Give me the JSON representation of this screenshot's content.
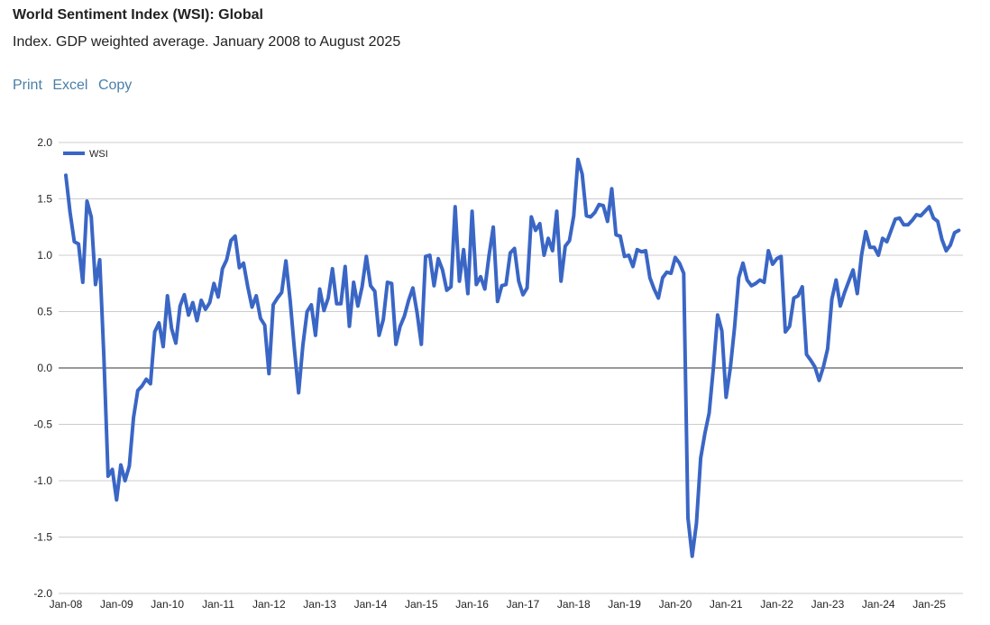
{
  "header": {
    "title": "World Sentiment Index (WSI): Global",
    "subtitle": "Index. GDP weighted average. January 2008 to August 2025"
  },
  "actions": {
    "print_label": "Print",
    "excel_label": "Excel",
    "copy_label": "Copy"
  },
  "chart_data": {
    "type": "line",
    "title": "World Sentiment Index (WSI): Global",
    "subtitle": "Index. GDP weighted average. January 2008 to August 2025",
    "xlabel": "",
    "ylabel": "",
    "ylim": [
      -2.0,
      2.0
    ],
    "yticks": [
      "2.0",
      "1.5",
      "1.0",
      "0.5",
      "0.0",
      "-0.5",
      "-1.0",
      "-1.5",
      "-2.0"
    ],
    "ytick_values": [
      2.0,
      1.5,
      1.0,
      0.5,
      0.0,
      -0.5,
      -1.0,
      -1.5,
      -2.0
    ],
    "xticks": [
      "Jan-08",
      "Jan-09",
      "Jan-10",
      "Jan-11",
      "Jan-12",
      "Jan-13",
      "Jan-14",
      "Jan-15",
      "Jan-16",
      "Jan-17",
      "Jan-18",
      "Jan-19",
      "Jan-20",
      "Jan-21",
      "Jan-22",
      "Jan-23",
      "Jan-24",
      "Jan-25"
    ],
    "start": "2008-01",
    "end": "2025-08",
    "grid": true,
    "legend": "top-left",
    "series_color": "#3a66c5",
    "series": [
      {
        "name": "WSI",
        "values": [
          1.71,
          1.38,
          1.12,
          1.1,
          0.76,
          1.48,
          1.34,
          0.74,
          0.96,
          0.1,
          -0.96,
          -0.9,
          -1.17,
          -0.86,
          -1.0,
          -0.87,
          -0.44,
          -0.2,
          -0.16,
          -0.1,
          -0.14,
          0.32,
          0.4,
          0.19,
          0.64,
          0.35,
          0.22,
          0.55,
          0.65,
          0.47,
          0.58,
          0.42,
          0.6,
          0.52,
          0.58,
          0.75,
          0.63,
          0.88,
          0.96,
          1.13,
          1.17,
          0.89,
          0.93,
          0.72,
          0.54,
          0.64,
          0.44,
          0.38,
          -0.05,
          0.56,
          0.62,
          0.67,
          0.95,
          0.6,
          0.17,
          -0.22,
          0.2,
          0.5,
          0.56,
          0.29,
          0.7,
          0.51,
          0.62,
          0.88,
          0.57,
          0.57,
          0.9,
          0.37,
          0.76,
          0.55,
          0.72,
          0.99,
          0.73,
          0.68,
          0.29,
          0.43,
          0.76,
          0.75,
          0.21,
          0.37,
          0.46,
          0.6,
          0.71,
          0.49,
          0.21,
          0.99,
          1.0,
          0.73,
          0.97,
          0.87,
          0.69,
          0.72,
          1.43,
          0.77,
          1.05,
          0.66,
          1.39,
          0.74,
          0.81,
          0.7,
          1.0,
          1.25,
          0.59,
          0.73,
          0.74,
          1.02,
          1.06,
          0.77,
          0.65,
          0.71,
          1.34,
          1.22,
          1.28,
          1.0,
          1.15,
          1.04,
          1.39,
          0.77,
          1.08,
          1.13,
          1.35,
          1.85,
          1.72,
          1.35,
          1.34,
          1.38,
          1.45,
          1.44,
          1.3,
          1.59,
          1.18,
          1.17,
          0.99,
          1.0,
          0.9,
          1.05,
          1.03,
          1.04,
          0.8,
          0.7,
          0.62,
          0.8,
          0.85,
          0.84,
          0.98,
          0.93,
          0.84,
          -1.33,
          -1.67,
          -1.38,
          -0.8,
          -0.58,
          -0.4,
          0.0,
          0.47,
          0.33,
          -0.26,
          0.0,
          0.36,
          0.8,
          0.93,
          0.78,
          0.73,
          0.75,
          0.78,
          0.76,
          1.04,
          0.92,
          0.97,
          0.99,
          0.32,
          0.37,
          0.62,
          0.64,
          0.72,
          0.12,
          0.07,
          0.01,
          -0.11,
          0.01,
          0.17,
          0.61,
          0.78,
          0.55,
          0.67,
          0.77,
          0.87,
          0.66,
          1.0,
          1.21,
          1.07,
          1.07,
          1.0,
          1.15,
          1.12,
          1.22,
          1.32,
          1.33,
          1.27,
          1.27,
          1.31,
          1.36,
          1.35,
          1.39,
          1.43,
          1.33,
          1.3,
          1.14,
          1.04,
          1.09,
          1.2,
          1.22
        ]
      }
    ]
  }
}
